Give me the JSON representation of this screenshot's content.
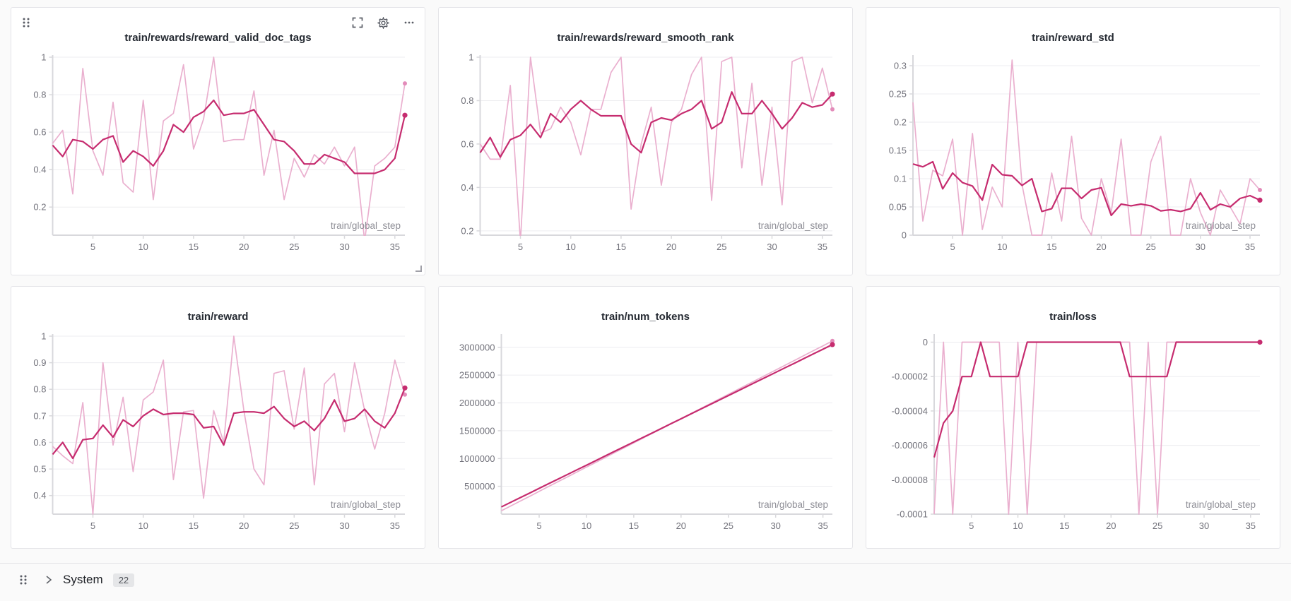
{
  "colors": {
    "raw": "#eab0cf",
    "raw_dot": "#e38cba",
    "smooth": "#c62c6f",
    "grid": "#ededf0",
    "axis": "#d8d8dc",
    "tick_text": "#72727b",
    "xlabel_text": "#8e8e96",
    "title_text": "#262b33",
    "page_bg": "#fafafa",
    "panel_border": "#e4e4e8",
    "badge_bg": "#e5e6e8",
    "icon": "#5a5d66"
  },
  "footer": {
    "section_label": "System",
    "badge_count": "22"
  },
  "chart_data": [
    {
      "type": "line",
      "title": "train/rewards/reward_valid_doc_tags",
      "xlabel": "train/global_step",
      "xlim": [
        1,
        36
      ],
      "xticks": [
        5,
        10,
        15,
        20,
        25,
        30,
        35
      ],
      "ylim": [
        0.05,
        1.0
      ],
      "yticks": [
        1,
        0.8,
        0.6,
        0.4,
        0.2
      ],
      "ytick_labels": [
        "1",
        "0.8",
        "0.6",
        "0.4",
        "0.2"
      ],
      "series": [
        {
          "name": "raw",
          "values": [
            0.54,
            0.61,
            0.27,
            0.94,
            0.5,
            0.37,
            0.76,
            0.33,
            0.28,
            0.77,
            0.24,
            0.66,
            0.7,
            0.96,
            0.51,
            0.67,
            1.0,
            0.55,
            0.56,
            0.56,
            0.82,
            0.37,
            0.61,
            0.24,
            0.46,
            0.36,
            0.48,
            0.43,
            0.52,
            0.42,
            0.52,
            0.02,
            0.42,
            0.46,
            0.52,
            0.86
          ]
        },
        {
          "name": "smoothed",
          "values": [
            0.53,
            0.47,
            0.56,
            0.55,
            0.51,
            0.56,
            0.58,
            0.44,
            0.5,
            0.47,
            0.42,
            0.5,
            0.64,
            0.6,
            0.68,
            0.71,
            0.77,
            0.69,
            0.7,
            0.7,
            0.72,
            0.64,
            0.56,
            0.55,
            0.5,
            0.43,
            0.43,
            0.48,
            0.46,
            0.44,
            0.38,
            0.38,
            0.38,
            0.4,
            0.46,
            0.69
          ]
        }
      ]
    },
    {
      "type": "line",
      "title": "train/rewards/reward_smooth_rank",
      "xlabel": "train/global_step",
      "xlim": [
        1,
        36
      ],
      "xticks": [
        5,
        10,
        15,
        20,
        25,
        30,
        35
      ],
      "ylim": [
        0.18,
        1.0
      ],
      "yticks": [
        1,
        0.8,
        0.6,
        0.4,
        0.2
      ],
      "ytick_labels": [
        "1",
        "0.8",
        "0.6",
        "0.4",
        "0.2"
      ],
      "series": [
        {
          "name": "raw",
          "values": [
            0.6,
            0.53,
            0.53,
            0.87,
            0.15,
            1.0,
            0.65,
            0.67,
            0.77,
            0.7,
            0.55,
            0.76,
            0.76,
            0.93,
            1.0,
            0.3,
            0.6,
            0.77,
            0.41,
            0.7,
            0.76,
            0.92,
            1.0,
            0.34,
            0.98,
            1.0,
            0.49,
            0.88,
            0.41,
            0.77,
            0.32,
            0.98,
            1.0,
            0.79,
            0.95,
            0.76
          ]
        },
        {
          "name": "smoothed",
          "values": [
            0.56,
            0.63,
            0.54,
            0.62,
            0.64,
            0.69,
            0.63,
            0.74,
            0.7,
            0.76,
            0.8,
            0.76,
            0.73,
            0.73,
            0.73,
            0.6,
            0.56,
            0.7,
            0.72,
            0.71,
            0.74,
            0.76,
            0.8,
            0.67,
            0.7,
            0.84,
            0.74,
            0.74,
            0.8,
            0.74,
            0.67,
            0.72,
            0.79,
            0.77,
            0.78,
            0.83
          ]
        }
      ]
    },
    {
      "type": "line",
      "title": "train/reward_std",
      "xlabel": "train/global_step",
      "xlim": [
        1,
        36
      ],
      "xticks": [
        5,
        10,
        15,
        20,
        25,
        30,
        35
      ],
      "ylim": [
        0,
        0.315
      ],
      "yticks": [
        0.3,
        0.25,
        0.2,
        0.15,
        0.1,
        0.05,
        0
      ],
      "ytick_labels": [
        "0.3",
        "0.25",
        "0.2",
        "0.15",
        "0.1",
        "0.05",
        "0"
      ],
      "series": [
        {
          "name": "raw",
          "values": [
            0.235,
            0.025,
            0.115,
            0.105,
            0.17,
            0,
            0.18,
            0.01,
            0.085,
            0.05,
            0.31,
            0.09,
            0,
            0,
            0.11,
            0.025,
            0.175,
            0.03,
            0,
            0.1,
            0.04,
            0.17,
            0,
            0,
            0.13,
            0.175,
            0,
            0,
            0.1,
            0.04,
            0,
            0.08,
            0.05,
            0.02,
            0.1,
            0.08
          ]
        },
        {
          "name": "smoothed",
          "values": [
            0.126,
            0.121,
            0.13,
            0.082,
            0.11,
            0.093,
            0.087,
            0.062,
            0.125,
            0.107,
            0.105,
            0.088,
            0.1,
            0.042,
            0.047,
            0.083,
            0.083,
            0.065,
            0.08,
            0.084,
            0.035,
            0.055,
            0.052,
            0.055,
            0.052,
            0.043,
            0.045,
            0.042,
            0.047,
            0.075,
            0.045,
            0.055,
            0.05,
            0.065,
            0.07,
            0.062
          ]
        }
      ]
    },
    {
      "type": "line",
      "title": "train/reward",
      "xlabel": "train/global_step",
      "xlim": [
        1,
        36
      ],
      "xticks": [
        5,
        10,
        15,
        20,
        25,
        30,
        35
      ],
      "ylim": [
        0.33,
        1.0
      ],
      "yticks": [
        1,
        0.9,
        0.8,
        0.7,
        0.6,
        0.5,
        0.4
      ],
      "ytick_labels": [
        "1",
        "0.9",
        "0.8",
        "0.7",
        "0.6",
        "0.5",
        "0.4"
      ],
      "series": [
        {
          "name": "raw",
          "values": [
            0.585,
            0.55,
            0.52,
            0.75,
            0.33,
            0.9,
            0.59,
            0.77,
            0.49,
            0.76,
            0.79,
            0.91,
            0.46,
            0.715,
            0.72,
            0.39,
            0.72,
            0.6,
            1.0,
            0.72,
            0.5,
            0.44,
            0.86,
            0.87,
            0.65,
            0.88,
            0.44,
            0.82,
            0.86,
            0.64,
            0.9,
            0.72,
            0.575,
            0.71,
            0.91,
            0.78
          ]
        },
        {
          "name": "smoothed",
          "values": [
            0.555,
            0.6,
            0.54,
            0.61,
            0.615,
            0.665,
            0.62,
            0.685,
            0.66,
            0.7,
            0.725,
            0.705,
            0.71,
            0.71,
            0.705,
            0.655,
            0.66,
            0.59,
            0.71,
            0.715,
            0.715,
            0.71,
            0.735,
            0.69,
            0.66,
            0.68,
            0.645,
            0.69,
            0.76,
            0.68,
            0.69,
            0.725,
            0.68,
            0.655,
            0.71,
            0.805
          ]
        }
      ]
    },
    {
      "type": "line",
      "title": "train/num_tokens",
      "xlabel": "train/global_step",
      "xlim": [
        1,
        36
      ],
      "xticks": [
        5,
        10,
        15,
        20,
        25,
        30,
        35
      ],
      "ylim": [
        0,
        3200000
      ],
      "yticks": [
        3000000,
        2500000,
        2000000,
        1500000,
        1000000,
        500000
      ],
      "ytick_labels": [
        "3000000",
        "2500000",
        "2000000",
        "1500000",
        "1000000",
        "500000"
      ],
      "series": [
        {
          "name": "raw",
          "values": [
            60000,
            147250,
            234500,
            321750,
            409000,
            496250,
            583500,
            670750,
            758000,
            845250,
            932500,
            1019750,
            1107000,
            1194250,
            1281500,
            1368750,
            1456000,
            1543250,
            1630500,
            1717750,
            1805000,
            1892250,
            1979500,
            2066750,
            2154000,
            2241250,
            2328500,
            2415750,
            2503000,
            2590250,
            2677500,
            2764750,
            2852000,
            2939250,
            3026500,
            3113750
          ]
        },
        {
          "name": "smoothed",
          "values": [
            130000,
            213400,
            296800,
            380200,
            463600,
            547000,
            630400,
            713800,
            797200,
            880600,
            964000,
            1047400,
            1130800,
            1214200,
            1297600,
            1381000,
            1464400,
            1547800,
            1631200,
            1714600,
            1798000,
            1881400,
            1964800,
            2048200,
            2131600,
            2215000,
            2298400,
            2381800,
            2465200,
            2548600,
            2632000,
            2715400,
            2798800,
            2882200,
            2965600,
            3049000
          ]
        }
      ]
    },
    {
      "type": "line",
      "title": "train/loss",
      "xlabel": "train/global_step",
      "xlim": [
        1,
        36
      ],
      "xticks": [
        5,
        10,
        15,
        20,
        25,
        30,
        35
      ],
      "ylim": [
        -0.0001,
        3.5e-06
      ],
      "yticks": [
        0,
        -2e-05,
        -4e-05,
        -6e-05,
        -8e-05,
        -0.0001
      ],
      "ytick_labels": [
        "0",
        "-0.00002",
        "-0.00004",
        "-0.00006",
        "-0.00008",
        "-0.0001"
      ],
      "series": [
        {
          "name": "raw",
          "values": [
            -0.0001,
            0,
            -0.0001,
            0,
            0,
            0,
            0,
            0,
            -0.0001,
            0,
            -0.0001,
            0,
            0,
            0,
            0,
            0,
            0,
            0,
            0,
            0,
            0,
            0,
            -0.0001,
            0,
            -0.0001,
            0,
            0,
            0,
            0,
            0,
            0,
            0,
            0,
            0,
            0,
            0
          ]
        },
        {
          "name": "smoothed",
          "values": [
            -6.7e-05,
            -4.7e-05,
            -4e-05,
            -2e-05,
            -2e-05,
            0,
            -2e-05,
            -2e-05,
            -2e-05,
            -2e-05,
            0,
            0,
            0,
            0,
            0,
            0,
            0,
            0,
            0,
            0,
            0,
            -2e-05,
            -2e-05,
            -2e-05,
            -2e-05,
            -2e-05,
            0,
            0,
            0,
            0,
            0,
            0,
            0,
            0,
            0,
            0
          ]
        }
      ]
    }
  ]
}
